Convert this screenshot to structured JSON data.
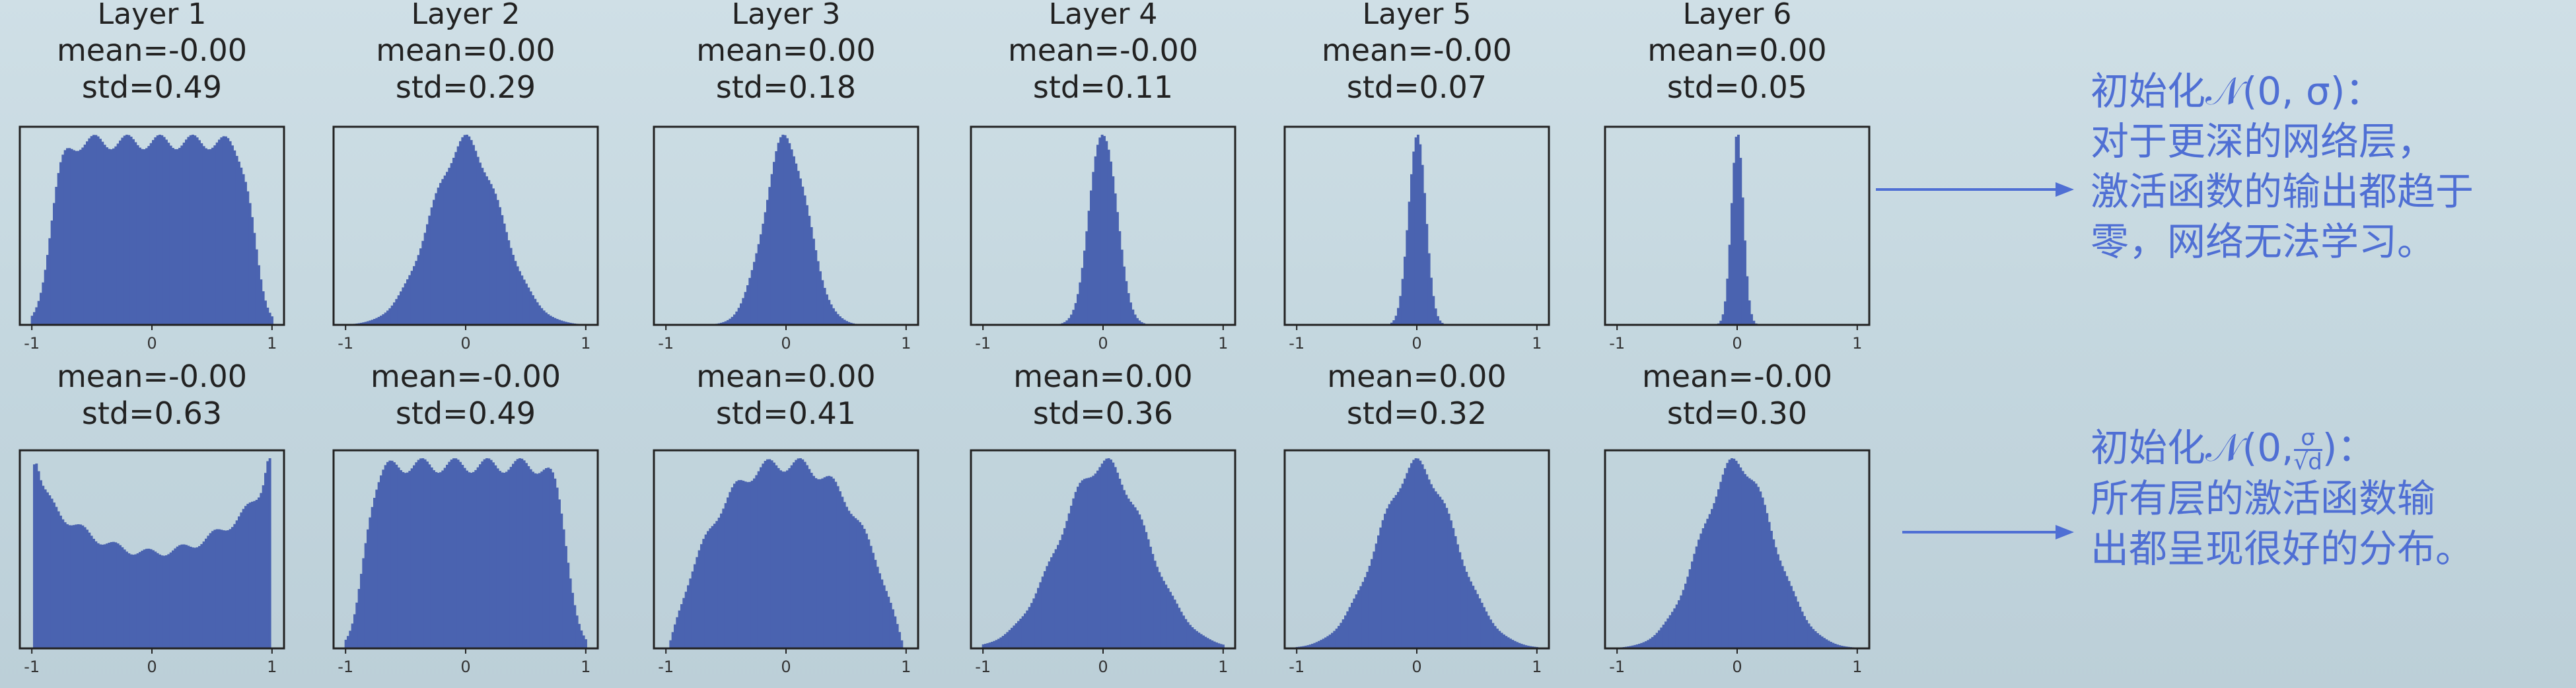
{
  "chart_data": [
    {
      "type": "bar",
      "title": "Layer 1",
      "mean": "mean=-0.00",
      "std": "std=0.49",
      "row": "top",
      "sigma": 0.49,
      "shape": "flat",
      "ticks": [
        "-1",
        "0",
        "1"
      ]
    },
    {
      "type": "bar",
      "title": "Layer 2",
      "mean": "mean=0.00",
      "std": "std=0.29",
      "row": "top",
      "sigma": 0.29,
      "shape": "normal",
      "ticks": [
        "-1",
        "0",
        "1"
      ]
    },
    {
      "type": "bar",
      "title": "Layer 3",
      "mean": "mean=0.00",
      "std": "std=0.18",
      "row": "top",
      "sigma": 0.18,
      "shape": "normal",
      "ticks": [
        "-1",
        "0",
        "1"
      ]
    },
    {
      "type": "bar",
      "title": "Layer 4",
      "mean": "mean=-0.00",
      "std": "std=0.11",
      "row": "top",
      "sigma": 0.11,
      "shape": "normal",
      "ticks": [
        "-1",
        "0",
        "1"
      ]
    },
    {
      "type": "bar",
      "title": "Layer 5",
      "mean": "mean=-0.00",
      "std": "std=0.07",
      "row": "top",
      "sigma": 0.07,
      "shape": "normal",
      "ticks": [
        "-1",
        "0",
        "1"
      ]
    },
    {
      "type": "bar",
      "title": "Layer 6",
      "mean": "mean=0.00",
      "std": "std=0.05",
      "row": "top",
      "sigma": 0.05,
      "shape": "normal",
      "ticks": [
        "-1",
        "0",
        "1"
      ]
    },
    {
      "type": "bar",
      "title": "",
      "mean": "mean=-0.00",
      "std": "std=0.63",
      "row": "bottom",
      "sigma": 0.63,
      "shape": "ushape",
      "ticks": [
        "-1",
        "0",
        "1"
      ]
    },
    {
      "type": "bar",
      "title": "",
      "mean": "mean=-0.00",
      "std": "std=0.49",
      "row": "bottom",
      "sigma": 0.49,
      "shape": "flat",
      "ticks": [
        "-1",
        "0",
        "1"
      ]
    },
    {
      "type": "bar",
      "title": "",
      "mean": "mean=0.00",
      "std": "std=0.41",
      "row": "bottom",
      "sigma": 0.41,
      "shape": "dome",
      "ticks": [
        "-1",
        "0",
        "1"
      ]
    },
    {
      "type": "bar",
      "title": "",
      "mean": "mean=0.00",
      "std": "std=0.36",
      "row": "bottom",
      "sigma": 0.36,
      "shape": "normal",
      "ticks": [
        "-1",
        "0",
        "1"
      ]
    },
    {
      "type": "bar",
      "title": "",
      "mean": "mean=0.00",
      "std": "std=0.32",
      "row": "bottom",
      "sigma": 0.32,
      "shape": "normal",
      "ticks": [
        "-1",
        "0",
        "1"
      ]
    },
    {
      "type": "bar",
      "title": "",
      "mean": "mean=-0.00",
      "std": "std=0.30",
      "row": "bottom",
      "sigma": 0.3,
      "shape": "normal",
      "ticks": [
        "-1",
        "0",
        "1"
      ]
    }
  ],
  "notes": {
    "top": {
      "head": "初始化𝒩(0, σ)：",
      "line2": "对于更深的网络层，",
      "line3": "激活函数的输出都趋于",
      "line4": "零，网络无法学习。"
    },
    "bottom": {
      "head_prefix": "初始化𝒩(0,",
      "frac_num": "σ",
      "frac_den": "√d",
      "head_suffix": ")：",
      "line2": "所有层的激活函数输",
      "line3": "出都呈现很好的分布。"
    }
  },
  "colors": {
    "bars": "#4a63b0",
    "accent": "#4f6fd4",
    "frame": "#222222"
  }
}
